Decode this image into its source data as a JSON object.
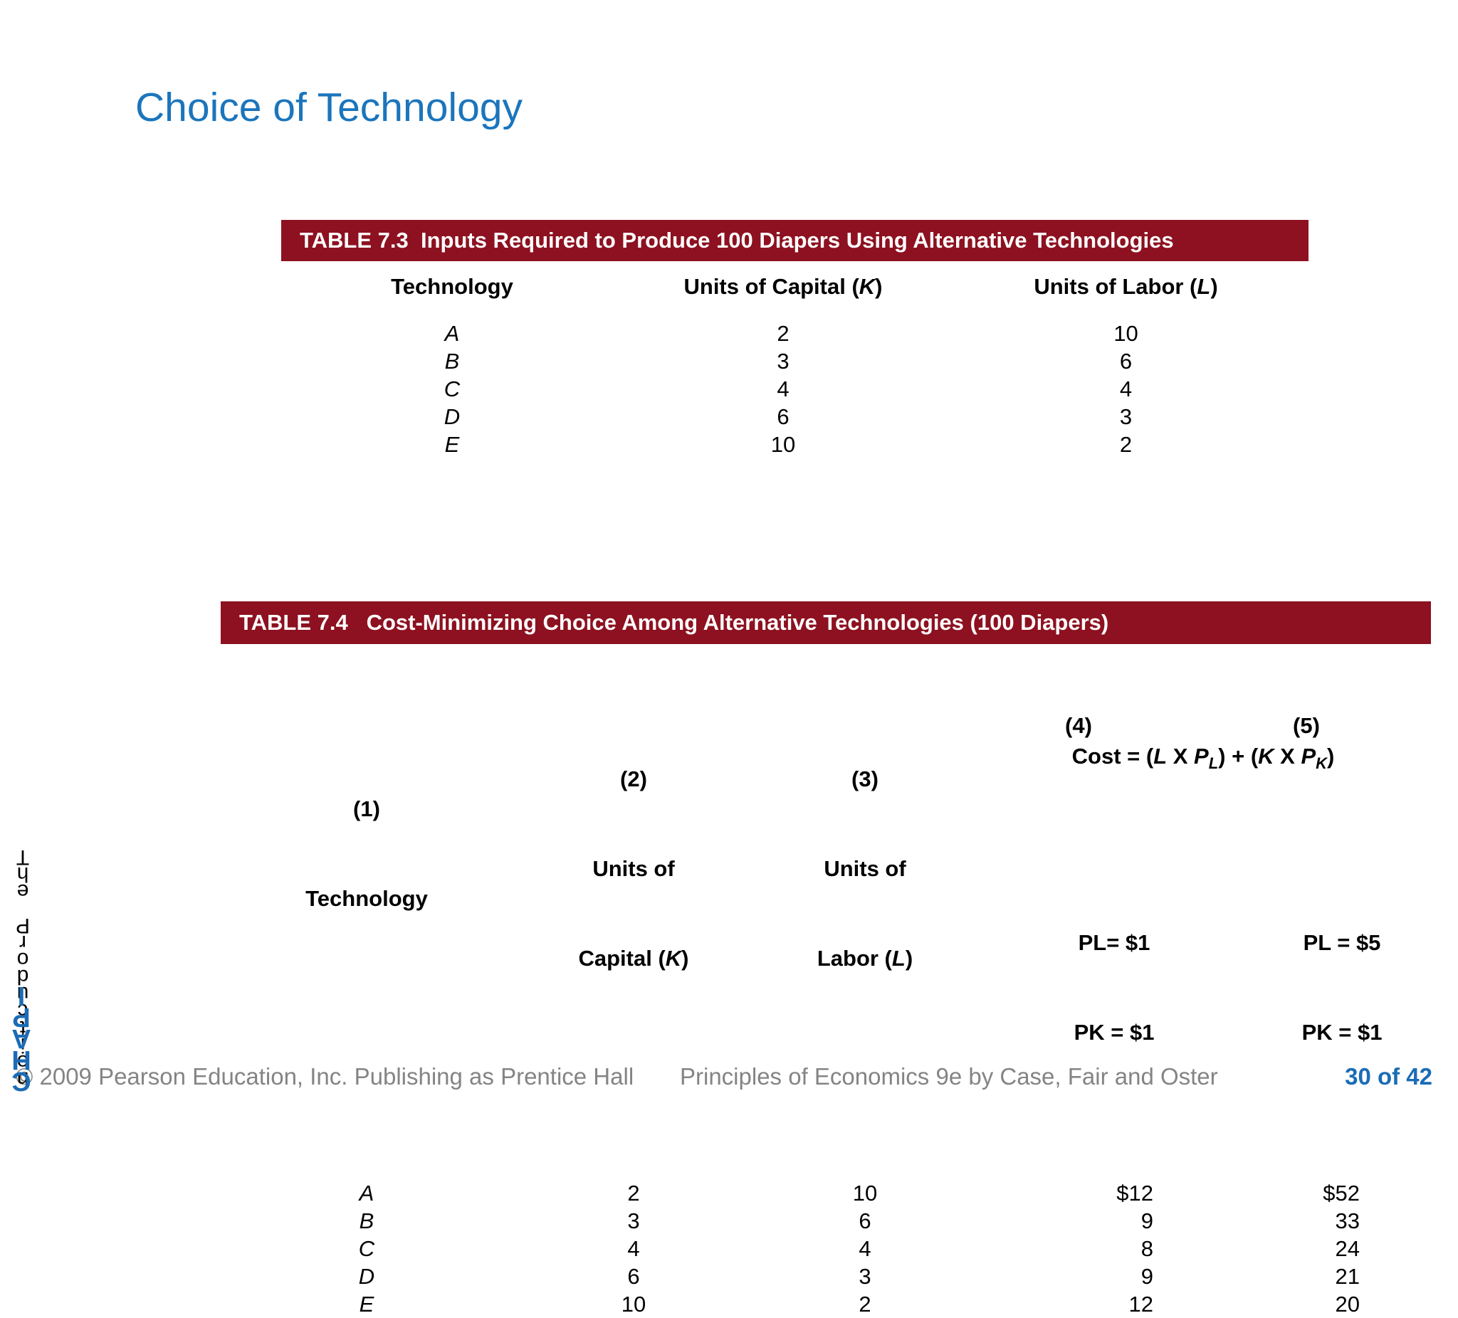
{
  "slide": {
    "title": "Choice of Technology",
    "page_indicator": "30 of 42",
    "footer_copyright": "© 2009 Pearson Education, Inc. Publishing as Prentice Hall",
    "footer_book": "Principles of Economics 9e by Case, Fair and Oster"
  },
  "colors": {
    "title_blue": "#1B75BC",
    "table_header_maroon": "#8D1120",
    "footer_gray": "#848484",
    "page_number_blue": "#1B6CB5"
  },
  "left_edge_artifact": {
    "black_text": "The Production",
    "blue_text": "CHAPI"
  },
  "table73": {
    "bar": "TABLE 7.3  Inputs Required to Produce 100 Diapers Using Alternative Technologies",
    "col1": "Technology",
    "col2_pre": "Units of Capital (",
    "col2_var": "K",
    "col2_post": ")",
    "col3_pre": "Units of Labor (",
    "col3_var": "L",
    "col3_post": ")",
    "rows": [
      [
        "A",
        "2",
        "10"
      ],
      [
        "B",
        "3",
        "6"
      ],
      [
        "C",
        "4",
        "4"
      ],
      [
        "D",
        "6",
        "3"
      ],
      [
        "E",
        "10",
        "2"
      ]
    ]
  },
  "table74": {
    "bar": "TABLE 7.4   Cost-Minimizing Choice Among Alternative Technologies (100 Diapers)",
    "num1": "(1)",
    "num2": "(2)",
    "num3": "(3)",
    "num4": "(4)",
    "num5": "(5)",
    "col1": "Technology",
    "col2a": "Units of",
    "col2b_pre": "Capital (",
    "col2b_var": "K",
    "col2b_post": ")",
    "col3a": "Units of",
    "col3b_pre": "Labor (",
    "col3b_var": "L",
    "col3b_post": ")",
    "formula": {
      "f1": "Cost = (",
      "f2": "L",
      "f3": " X ",
      "f4": "P",
      "f5": "L",
      "f6": ") + (",
      "f7": "K",
      "f8": " X ",
      "f9": "P",
      "f10": "K",
      "f11": ")"
    },
    "price4a": "PL= $1",
    "price4b": "PK = $1",
    "price5a": "PL = $5",
    "price5b": "PK = $1",
    "rows": [
      [
        "A",
        "2",
        "10",
        "$12",
        "$52"
      ],
      [
        "B",
        "3",
        "6",
        "9",
        "33"
      ],
      [
        "C",
        "4",
        "4",
        "8",
        "24"
      ],
      [
        "D",
        "6",
        "3",
        "9",
        "21"
      ],
      [
        "E",
        "10",
        "2",
        "12",
        "20"
      ]
    ]
  }
}
